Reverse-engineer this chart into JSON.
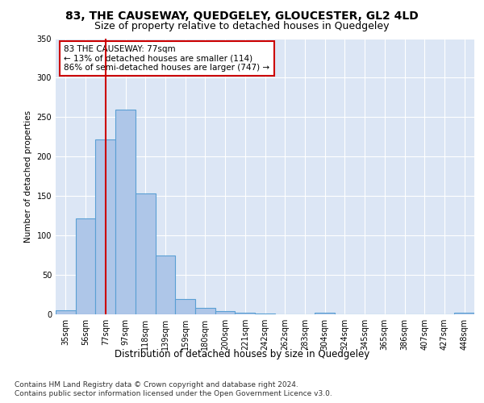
{
  "title": "83, THE CAUSEWAY, QUEDGELEY, GLOUCESTER, GL2 4LD",
  "subtitle": "Size of property relative to detached houses in Quedgeley",
  "xlabel": "Distribution of detached houses by size in Quedgeley",
  "ylabel": "Number of detached properties",
  "categories": [
    "35sqm",
    "56sqm",
    "77sqm",
    "97sqm",
    "118sqm",
    "139sqm",
    "159sqm",
    "180sqm",
    "200sqm",
    "221sqm",
    "242sqm",
    "262sqm",
    "283sqm",
    "304sqm",
    "324sqm",
    "345sqm",
    "365sqm",
    "386sqm",
    "407sqm",
    "427sqm",
    "448sqm"
  ],
  "values": [
    5,
    122,
    222,
    260,
    153,
    75,
    19,
    8,
    4,
    2,
    1,
    0,
    0,
    2,
    0,
    0,
    0,
    0,
    0,
    0,
    2
  ],
  "bar_color": "#aec6e8",
  "bar_edgecolor": "#5a9fd4",
  "bar_linewidth": 0.8,
  "vline_x_index": 2,
  "vline_color": "#cc0000",
  "vline_linewidth": 1.5,
  "annotation_text": "83 THE CAUSEWAY: 77sqm\n← 13% of detached houses are smaller (114)\n86% of semi-detached houses are larger (747) →",
  "annotation_boxcolor": "white",
  "annotation_edgecolor": "#cc0000",
  "ylim": [
    0,
    350
  ],
  "yticks": [
    0,
    50,
    100,
    150,
    200,
    250,
    300,
    350
  ],
  "background_color": "#dce6f5",
  "axes_background": "#dce6f5",
  "grid_color": "white",
  "footer_line1": "Contains HM Land Registry data © Crown copyright and database right 2024.",
  "footer_line2": "Contains public sector information licensed under the Open Government Licence v3.0.",
  "title_fontsize": 10,
  "subtitle_fontsize": 9,
  "xlabel_fontsize": 8.5,
  "ylabel_fontsize": 7.5,
  "tick_fontsize": 7,
  "annotation_fontsize": 7.5,
  "footer_fontsize": 6.5
}
